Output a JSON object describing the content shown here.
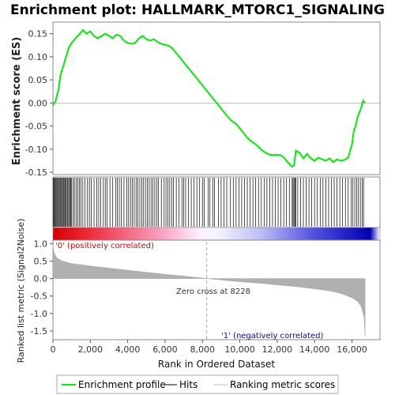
{
  "chart_data": {
    "type": "line",
    "title": "Enrichment plot: HALLMARK_MTORC1_SIGNALING",
    "xlabel": "Rank in Ordered Dataset",
    "xlim": [
      0,
      17500
    ],
    "x_ticks": [
      0,
      2000,
      4000,
      6000,
      8000,
      10000,
      12000,
      14000,
      16000
    ],
    "x_tick_labels": [
      "0",
      "2,000",
      "4,000",
      "6,000",
      "8,000",
      "10,000",
      "12,000",
      "14,000",
      "16,000"
    ],
    "es_panel": {
      "ylabel": "Enrichment score (ES)",
      "ylim": [
        -0.155,
        0.175
      ],
      "y_ticks": [
        -0.15,
        -0.1,
        -0.05,
        0.0,
        0.05,
        0.1,
        0.15
      ],
      "y_tick_labels": [
        "-0.15",
        "-0.10",
        "-0.05",
        "0.00",
        "0.05",
        "0.10",
        "0.15"
      ],
      "series": [
        {
          "name": "Enrichment profile",
          "color": "#00ee00",
          "points": [
            [
              0,
              -0.005
            ],
            [
              150,
              0.005
            ],
            [
              300,
              0.03
            ],
            [
              400,
              0.06
            ],
            [
              550,
              0.08
            ],
            [
              700,
              0.1
            ],
            [
              850,
              0.12
            ],
            [
              1000,
              0.13
            ],
            [
              1200,
              0.14
            ],
            [
              1400,
              0.148
            ],
            [
              1600,
              0.158
            ],
            [
              1800,
              0.15
            ],
            [
              2000,
              0.155
            ],
            [
              2200,
              0.145
            ],
            [
              2400,
              0.14
            ],
            [
              2600,
              0.145
            ],
            [
              2800,
              0.15
            ],
            [
              3000,
              0.145
            ],
            [
              3200,
              0.14
            ],
            [
              3400,
              0.148
            ],
            [
              3600,
              0.145
            ],
            [
              3800,
              0.135
            ],
            [
              4000,
              0.13
            ],
            [
              4200,
              0.128
            ],
            [
              4400,
              0.13
            ],
            [
              4600,
              0.14
            ],
            [
              4800,
              0.145
            ],
            [
              5000,
              0.138
            ],
            [
              5200,
              0.135
            ],
            [
              5400,
              0.138
            ],
            [
              5600,
              0.132
            ],
            [
              5800,
              0.128
            ],
            [
              6000,
              0.126
            ],
            [
              6200,
              0.124
            ],
            [
              6400,
              0.118
            ],
            [
              6600,
              0.108
            ],
            [
              6800,
              0.098
            ],
            [
              7000,
              0.088
            ],
            [
              7200,
              0.078
            ],
            [
              7400,
              0.068
            ],
            [
              7600,
              0.058
            ],
            [
              7800,
              0.048
            ],
            [
              8000,
              0.038
            ],
            [
              8200,
              0.028
            ],
            [
              8400,
              0.018
            ],
            [
              8600,
              0.008
            ],
            [
              8800,
              -0.002
            ],
            [
              9000,
              -0.012
            ],
            [
              9200,
              -0.022
            ],
            [
              9400,
              -0.032
            ],
            [
              9600,
              -0.04
            ],
            [
              9800,
              -0.045
            ],
            [
              10000,
              -0.055
            ],
            [
              10200,
              -0.065
            ],
            [
              10400,
              -0.075
            ],
            [
              10600,
              -0.083
            ],
            [
              10800,
              -0.088
            ],
            [
              11000,
              -0.095
            ],
            [
              11200,
              -0.103
            ],
            [
              11400,
              -0.108
            ],
            [
              11600,
              -0.112
            ],
            [
              11800,
              -0.113
            ],
            [
              12000,
              -0.112
            ],
            [
              12200,
              -0.113
            ],
            [
              12400,
              -0.12
            ],
            [
              12600,
              -0.13
            ],
            [
              12800,
              -0.138
            ],
            [
              12900,
              -0.135
            ],
            [
              13000,
              -0.103
            ],
            [
              13200,
              -0.108
            ],
            [
              13400,
              -0.12
            ],
            [
              13600,
              -0.11
            ],
            [
              13800,
              -0.12
            ],
            [
              14000,
              -0.125
            ],
            [
              14200,
              -0.118
            ],
            [
              14400,
              -0.122
            ],
            [
              14600,
              -0.125
            ],
            [
              14800,
              -0.12
            ],
            [
              15000,
              -0.128
            ],
            [
              15200,
              -0.122
            ],
            [
              15400,
              -0.125
            ],
            [
              15600,
              -0.123
            ],
            [
              15800,
              -0.118
            ],
            [
              16000,
              -0.09
            ],
            [
              16100,
              -0.06
            ],
            [
              16200,
              -0.05
            ],
            [
              16300,
              -0.03
            ],
            [
              16400,
              -0.02
            ],
            [
              16500,
              -0.01
            ],
            [
              16600,
              0.005
            ],
            [
              16700,
              0.0
            ]
          ]
        }
      ]
    },
    "hits_panel": {
      "series_name": "Hits",
      "color": "#000000",
      "hit_positions": [
        30,
        70,
        110,
        150,
        200,
        240,
        290,
        330,
        380,
        420,
        470,
        510,
        560,
        600,
        650,
        700,
        760,
        800,
        850,
        900,
        950,
        1000,
        1080,
        1150,
        1250,
        1330,
        1420,
        1500,
        1600,
        1720,
        1850,
        1950,
        2050,
        2200,
        2350,
        2450,
        2550,
        2700,
        2800,
        2900,
        3050,
        3200,
        3350,
        3450,
        3550,
        3650,
        3800,
        3950,
        4050,
        4150,
        4250,
        4350,
        4450,
        4550,
        4650,
        4750,
        4850,
        4950,
        5050,
        5150,
        5250,
        5350,
        5450,
        5550,
        5650,
        5800,
        5950,
        6050,
        6150,
        6250,
        6350,
        6450,
        6600,
        6750,
        6900,
        7000,
        7100,
        7250,
        7400,
        7550,
        7700,
        7850,
        8000,
        8100,
        8300,
        8400,
        8550,
        8650,
        8850,
        9000,
        9150,
        9300,
        9500,
        9650,
        9800,
        9950,
        10100,
        10250,
        10400,
        10550,
        10700,
        10850,
        11000,
        11150,
        11300,
        11450,
        11600,
        11750,
        11900,
        12050,
        12200,
        12350,
        12500,
        12650,
        12800,
        12850,
        12900,
        12950,
        13000,
        13100,
        13250,
        13400,
        13550,
        13700,
        13850,
        14000,
        14150,
        14300,
        14450,
        14600,
        14750,
        14900,
        15050,
        15200,
        15350,
        15500,
        15650,
        15800,
        15950,
        16050,
        16150,
        16250,
        16350,
        16450,
        16550,
        16620
      ]
    },
    "heat_bar": {
      "low_color": "#dd0000",
      "mid_color": "#ffffff",
      "high_color": "#0000cc"
    },
    "metric_panel": {
      "ylabel": "Ranked list metric (Signal2Noise)",
      "ylim": [
        -1.75,
        1.1
      ],
      "y_ticks": [
        -1.5,
        -1.0,
        -0.5,
        0.0,
        0.5,
        1.0
      ],
      "y_tick_labels": [
        "-1.5",
        "-1.0",
        "-0.5",
        "0.0",
        "0.5",
        "1.0"
      ],
      "series_name": "Ranking metric scores",
      "color": "#aaaaaa",
      "points": [
        [
          0,
          0.95
        ],
        [
          50,
          0.75
        ],
        [
          200,
          0.6
        ],
        [
          500,
          0.5
        ],
        [
          1000,
          0.43
        ],
        [
          2000,
          0.36
        ],
        [
          3000,
          0.3
        ],
        [
          4000,
          0.24
        ],
        [
          5000,
          0.18
        ],
        [
          6000,
          0.12
        ],
        [
          7000,
          0.07
        ],
        [
          8228,
          0.0
        ],
        [
          9000,
          -0.04
        ],
        [
          10000,
          -0.09
        ],
        [
          11000,
          -0.13
        ],
        [
          12000,
          -0.18
        ],
        [
          13000,
          -0.23
        ],
        [
          14000,
          -0.29
        ],
        [
          15000,
          -0.37
        ],
        [
          15500,
          -0.44
        ],
        [
          16000,
          -0.55
        ],
        [
          16300,
          -0.65
        ],
        [
          16500,
          -0.8
        ],
        [
          16650,
          -1.1
        ],
        [
          16700,
          -1.65
        ]
      ],
      "annotations": {
        "positive": "'0' (positively correlated)",
        "negative": "'1' (negatively correlated)",
        "zero_cross": "Zero cross at 8228",
        "zero_cross_rank": 8228
      },
      "positive_color": "#dd0000",
      "negative_color": "#0000cc"
    },
    "legend": {
      "placement": "bottom",
      "entries": [
        {
          "label": "Enrichment profile",
          "color": "#00ee00"
        },
        {
          "label": "Hits",
          "color": "#000000"
        },
        {
          "label": "Ranking metric scores",
          "color": "#bbbbbb"
        }
      ]
    }
  }
}
